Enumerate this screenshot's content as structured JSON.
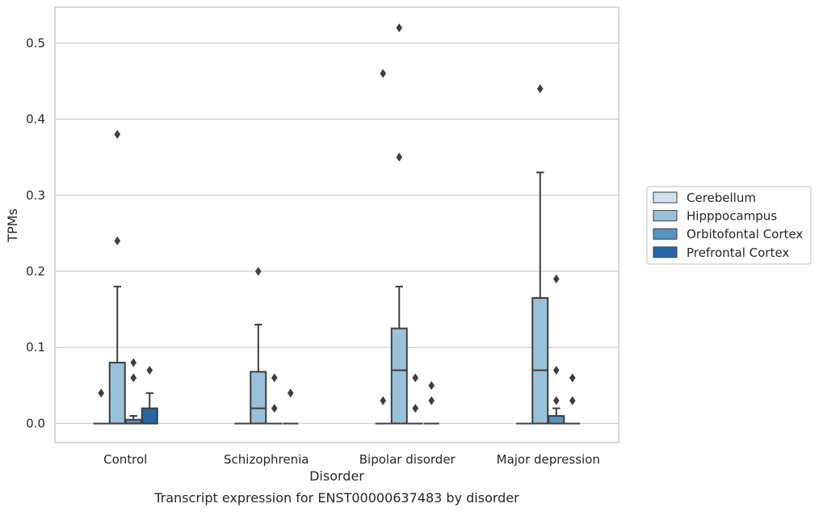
{
  "chart_data": {
    "type": "box",
    "caption": "Transcript expression for ENST00000637483 by disorder",
    "xlabel": "Disorder",
    "ylabel": "TPMs",
    "ylim": [
      -0.025,
      0.547
    ],
    "yticks": [
      "0.0",
      "0.1",
      "0.2",
      "0.3",
      "0.4",
      "0.5"
    ],
    "ytick_values": [
      0.0,
      0.1,
      0.2,
      0.3,
      0.4,
      0.5
    ],
    "grid": "horizontal",
    "legend_position": "right",
    "categories": [
      "Control",
      "Schizophrenia",
      "Bipolar disorder",
      "Major depression"
    ],
    "series": [
      {
        "name": "Cerebellum",
        "color": "#d1e2f1",
        "boxes": [
          {
            "q1": 0,
            "median": 0,
            "q3": 0,
            "whislo": 0,
            "whishi": 0,
            "fliers": [
              0.04
            ]
          },
          {
            "q1": 0,
            "median": 0,
            "q3": 0,
            "whislo": 0,
            "whishi": 0,
            "fliers": []
          },
          {
            "q1": 0,
            "median": 0,
            "q3": 0,
            "whislo": 0,
            "whishi": 0,
            "fliers": [
              0.03,
              0.46
            ]
          },
          {
            "q1": 0,
            "median": 0,
            "q3": 0,
            "whislo": 0,
            "whishi": 0,
            "fliers": []
          }
        ]
      },
      {
        "name": "Hipppocampus",
        "color": "#9ac1da",
        "boxes": [
          {
            "q1": 0,
            "median": 0,
            "q3": 0.08,
            "whislo": 0,
            "whishi": 0.18,
            "fliers": [
              0.24,
              0.38
            ]
          },
          {
            "q1": 0,
            "median": 0.02,
            "q3": 0.068,
            "whislo": 0,
            "whishi": 0.13,
            "fliers": [
              0.2
            ]
          },
          {
            "q1": 0,
            "median": 0.07,
            "q3": 0.125,
            "whislo": 0,
            "whishi": 0.18,
            "fliers": [
              0.35,
              0.52
            ]
          },
          {
            "q1": 0,
            "median": 0.07,
            "q3": 0.165,
            "whislo": 0,
            "whishi": 0.33,
            "fliers": [
              0.44
            ]
          }
        ]
      },
      {
        "name": "Orbitofontal Cortex",
        "color": "#5593c1",
        "boxes": [
          {
            "q1": 0,
            "median": 0,
            "q3": 0.005,
            "whislo": 0,
            "whishi": 0.01,
            "fliers": [
              0.06,
              0.08
            ]
          },
          {
            "q1": 0,
            "median": 0,
            "q3": 0,
            "whislo": 0,
            "whishi": 0,
            "fliers": [
              0.02,
              0.06
            ]
          },
          {
            "q1": 0,
            "median": 0,
            "q3": 0,
            "whislo": 0,
            "whishi": 0,
            "fliers": [
              0.02,
              0.06
            ]
          },
          {
            "q1": 0,
            "median": 0,
            "q3": 0.01,
            "whislo": 0,
            "whishi": 0.02,
            "fliers": [
              0.03,
              0.07,
              0.19
            ]
          }
        ]
      },
      {
        "name": "Prefrontal Cortex",
        "color": "#2466a8",
        "boxes": [
          {
            "q1": 0,
            "median": 0,
            "q3": 0.02,
            "whislo": 0,
            "whishi": 0.04,
            "fliers": [
              0.07
            ]
          },
          {
            "q1": 0,
            "median": 0,
            "q3": 0,
            "whislo": 0,
            "whishi": 0,
            "fliers": [
              0.04
            ]
          },
          {
            "q1": 0,
            "median": 0,
            "q3": 0,
            "whislo": 0,
            "whishi": 0,
            "fliers": [
              0.03,
              0.05
            ]
          },
          {
            "q1": 0,
            "median": 0,
            "q3": 0,
            "whislo": 0,
            "whishi": 0,
            "fliers": [
              0.03,
              0.06
            ]
          }
        ]
      }
    ]
  }
}
